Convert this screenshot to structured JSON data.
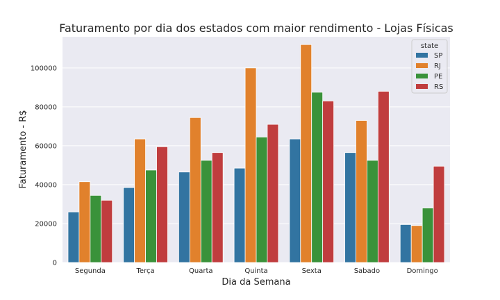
{
  "chart_data": {
    "type": "bar",
    "title": "Faturamento por dia dos estados com maior rendimento - Lojas Físicas",
    "xlabel": "Dia da Semana",
    "ylabel": "Faturamento - R$",
    "categories": [
      "Segunda",
      "Terça",
      "Quarta",
      "Quinta",
      "Sexta",
      "Sabado",
      "Domingo"
    ],
    "series": [
      {
        "name": "SP",
        "color": "#3274a1",
        "values": [
          26000,
          38500,
          46500,
          48500,
          63500,
          56500,
          19500
        ]
      },
      {
        "name": "RJ",
        "color": "#e1812c",
        "values": [
          41500,
          63500,
          74500,
          100000,
          112000,
          73000,
          19000
        ]
      },
      {
        "name": "PE",
        "color": "#3a923a",
        "values": [
          34500,
          47500,
          52500,
          64500,
          87500,
          52500,
          28000
        ]
      },
      {
        "name": "RS",
        "color": "#c03d3e",
        "values": [
          32000,
          59500,
          56500,
          71000,
          83000,
          88000,
          49500
        ]
      }
    ],
    "ylim": [
      0,
      116000
    ],
    "yticks": [
      0,
      20000,
      40000,
      60000,
      80000,
      100000
    ],
    "ytick_labels": [
      "0",
      "20000",
      "40000",
      "60000",
      "80000",
      "100000"
    ],
    "grid": true,
    "background": "#eaeaf2",
    "legend": {
      "title": "state",
      "placement": "top-right"
    }
  }
}
